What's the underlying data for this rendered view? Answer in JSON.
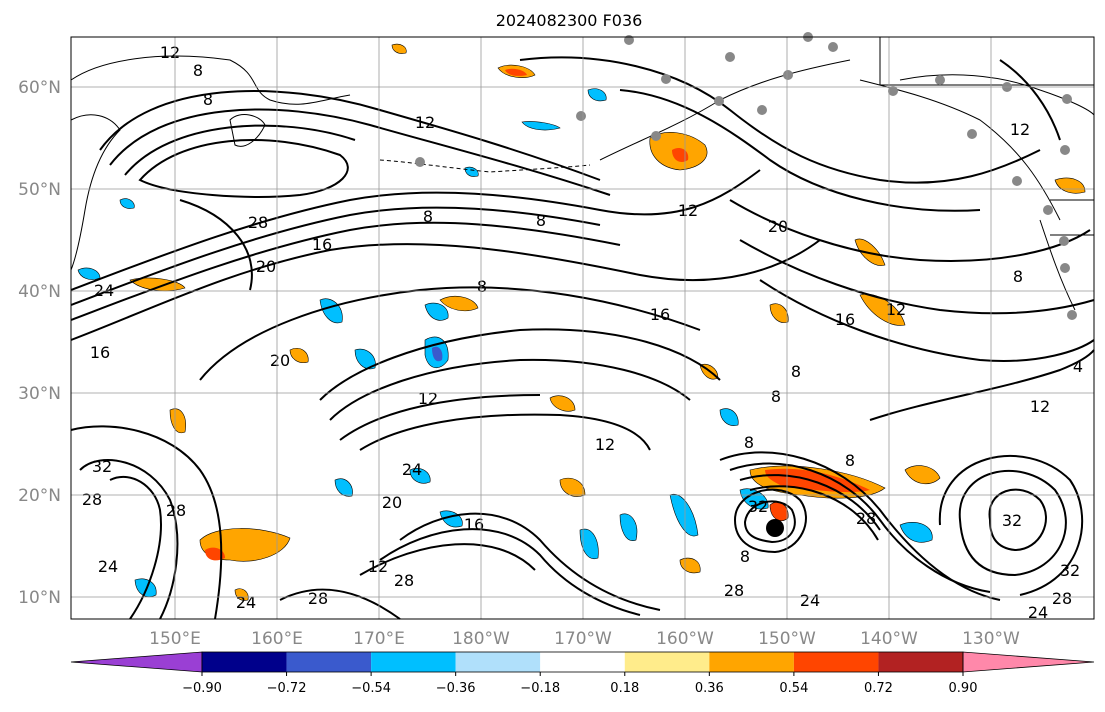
{
  "title": "2024082300 F036",
  "lat_labels": [
    "60°N",
    "50°N",
    "40°N",
    "30°N",
    "20°N",
    "10°N"
  ],
  "lon_labels": [
    "150°E",
    "160°E",
    "170°E",
    "180°W",
    "170°W",
    "160°W",
    "150°W",
    "140°W",
    "130°W"
  ],
  "colorbar": {
    "ticks": [
      "−0.90",
      "−0.72",
      "−0.54",
      "−0.36",
      "−0.18",
      "0.18",
      "0.36",
      "0.54",
      "0.72",
      "0.90"
    ],
    "colors": [
      "#9a3fd4",
      "#00008b",
      "#3a5acd",
      "#00bfff",
      "#b0e0fb",
      "#ffffff",
      "#ffec8b",
      "#ffa500",
      "#ff4500",
      "#b22222",
      "#ff88aa"
    ]
  },
  "contour_labels": [
    "12",
    "8",
    "8",
    "12",
    "28",
    "16",
    "20",
    "24",
    "16",
    "20",
    "8",
    "8",
    "12",
    "20",
    "16",
    "12",
    "8",
    "8",
    "12",
    "8",
    "16",
    "24",
    "20",
    "16",
    "12",
    "28",
    "32",
    "28",
    "28",
    "24",
    "24",
    "28",
    "12",
    "28",
    "8",
    "8",
    "8",
    "32",
    "12",
    "24",
    "28",
    "32",
    "32",
    "28",
    "24",
    "8",
    "4",
    "12"
  ],
  "map": {
    "ocean_color": "#ffffff",
    "grid_color": "#999999",
    "station_color": "#888888",
    "storm_marker_color": "#000000"
  }
}
